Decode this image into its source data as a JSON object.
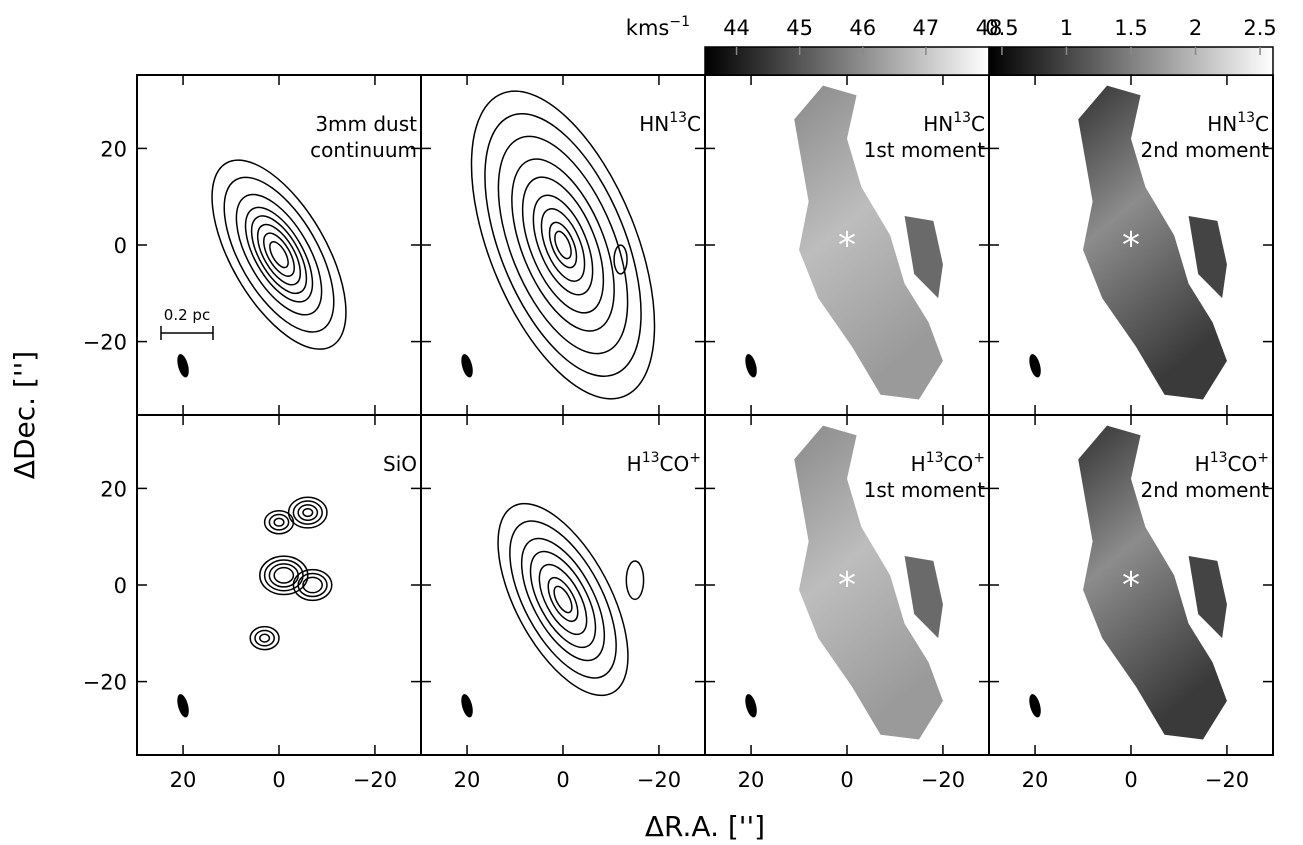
{
  "axes": {
    "xlabel": "ΔR.A. ['']",
    "ylabel": "ΔDec. ['']",
    "xlim": [
      29.6,
      -29.6
    ],
    "ylim": [
      -35.2,
      35.2
    ],
    "xticks": [
      20,
      0,
      {
        "value": -20,
        "label": "−20"
      }
    ],
    "yticks": [
      20,
      0,
      {
        "value": -20,
        "label": "−20"
      }
    ]
  },
  "colorbar_unit": [
    {
      "t": "kms"
    },
    {
      "t": "−1",
      "sup": true
    }
  ],
  "colorbars": [
    {
      "lim": [
        43.5,
        48
      ],
      "ticks": [
        44,
        45,
        46,
        47,
        48
      ]
    },
    {
      "lim": [
        0.4,
        2.6
      ],
      "ticks": [
        0.5,
        1,
        1.5,
        2,
        2.5
      ]
    }
  ],
  "scale_bar": "0.2 pc",
  "panels": [
    {
      "label": [
        [
          {
            "t": "3mm dust"
          }
        ],
        [
          {
            "t": "continuum"
          }
        ]
      ]
    },
    {
      "label": [
        [
          {
            "t": "HN"
          },
          {
            "t": "13",
            "sup": true
          },
          {
            "t": "C"
          }
        ]
      ]
    },
    {
      "label": [
        [
          {
            "t": "HN"
          },
          {
            "t": "13",
            "sup": true
          },
          {
            "t": "C"
          }
        ],
        [
          {
            "t": "1st moment"
          }
        ]
      ]
    },
    {
      "label": [
        [
          {
            "t": "HN"
          },
          {
            "t": "13",
            "sup": true
          },
          {
            "t": "C"
          }
        ],
        [
          {
            "t": "2nd moment"
          }
        ]
      ]
    },
    {
      "label": [
        [
          {
            "t": "SiO"
          }
        ]
      ]
    },
    {
      "label": [
        [
          {
            "t": "H"
          },
          {
            "t": "13",
            "sup": true
          },
          {
            "t": "CO"
          },
          {
            "t": "+",
            "sup": true
          }
        ]
      ]
    },
    {
      "label": [
        [
          {
            "t": "H"
          },
          {
            "t": "13",
            "sup": true
          },
          {
            "t": "CO"
          },
          {
            "t": "+",
            "sup": true
          }
        ],
        [
          {
            "t": "1st moment"
          }
        ]
      ]
    },
    {
      "label": [
        [
          {
            "t": "H"
          },
          {
            "t": "13",
            "sup": true
          },
          {
            "t": "CO"
          },
          {
            "t": "+",
            "sup": true
          }
        ],
        [
          {
            "t": "2nd moment"
          }
        ]
      ]
    }
  ]
}
